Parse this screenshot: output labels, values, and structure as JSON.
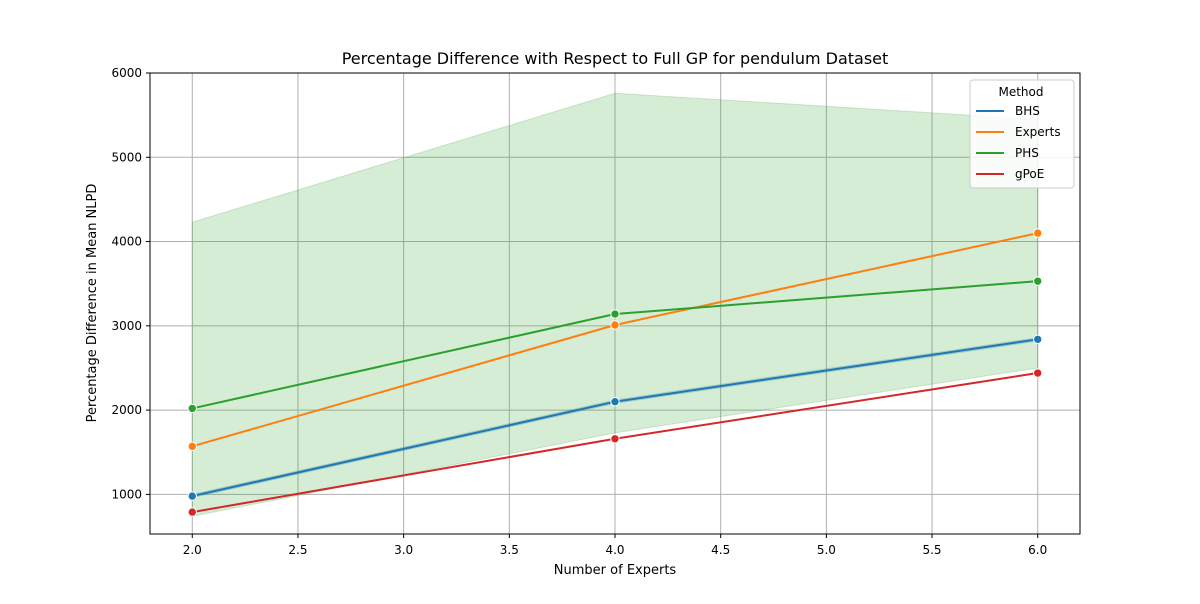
{
  "chart_data": {
    "type": "line",
    "title": "Percentage Difference with Respect to Full GP for pendulum Dataset",
    "xlabel": "Number of Experts",
    "ylabel": "Percentage Difference in Mean NLPD",
    "xlim": [
      1.8,
      6.2
    ],
    "ylim": [
      530,
      6000
    ],
    "x_ticks": [
      2.0,
      2.5,
      3.0,
      3.5,
      4.0,
      4.5,
      5.0,
      5.5,
      6.0
    ],
    "x_tick_labels": [
      "2.0",
      "2.5",
      "3.0",
      "3.5",
      "4.0",
      "4.5",
      "5.0",
      "5.5",
      "6.0"
    ],
    "y_ticks": [
      1000,
      2000,
      3000,
      4000,
      5000,
      6000
    ],
    "y_tick_labels": [
      "1000",
      "2000",
      "3000",
      "4000",
      "5000",
      "6000"
    ],
    "grid": true,
    "legend": {
      "title": "Method",
      "placement": "top-right"
    },
    "x": [
      2,
      4,
      6
    ],
    "series": [
      {
        "name": "BHS",
        "color": "#1f77b4",
        "values": [
          980,
          2100,
          2840
        ],
        "band_lower": [
          960,
          2080,
          2820
        ],
        "band_upper": [
          1000,
          2120,
          2860
        ]
      },
      {
        "name": "Experts",
        "color": "#ff7f0e",
        "values": [
          1570,
          3010,
          4100
        ]
      },
      {
        "name": "PHS",
        "color": "#2ca02c",
        "values": [
          2020,
          3140,
          3530
        ],
        "band_lower": [
          740,
          1730,
          2500
        ],
        "band_upper": [
          4230,
          5760,
          5450
        ]
      },
      {
        "name": "gPoE",
        "color": "#d62728",
        "values": [
          790,
          1660,
          2440
        ]
      }
    ]
  }
}
